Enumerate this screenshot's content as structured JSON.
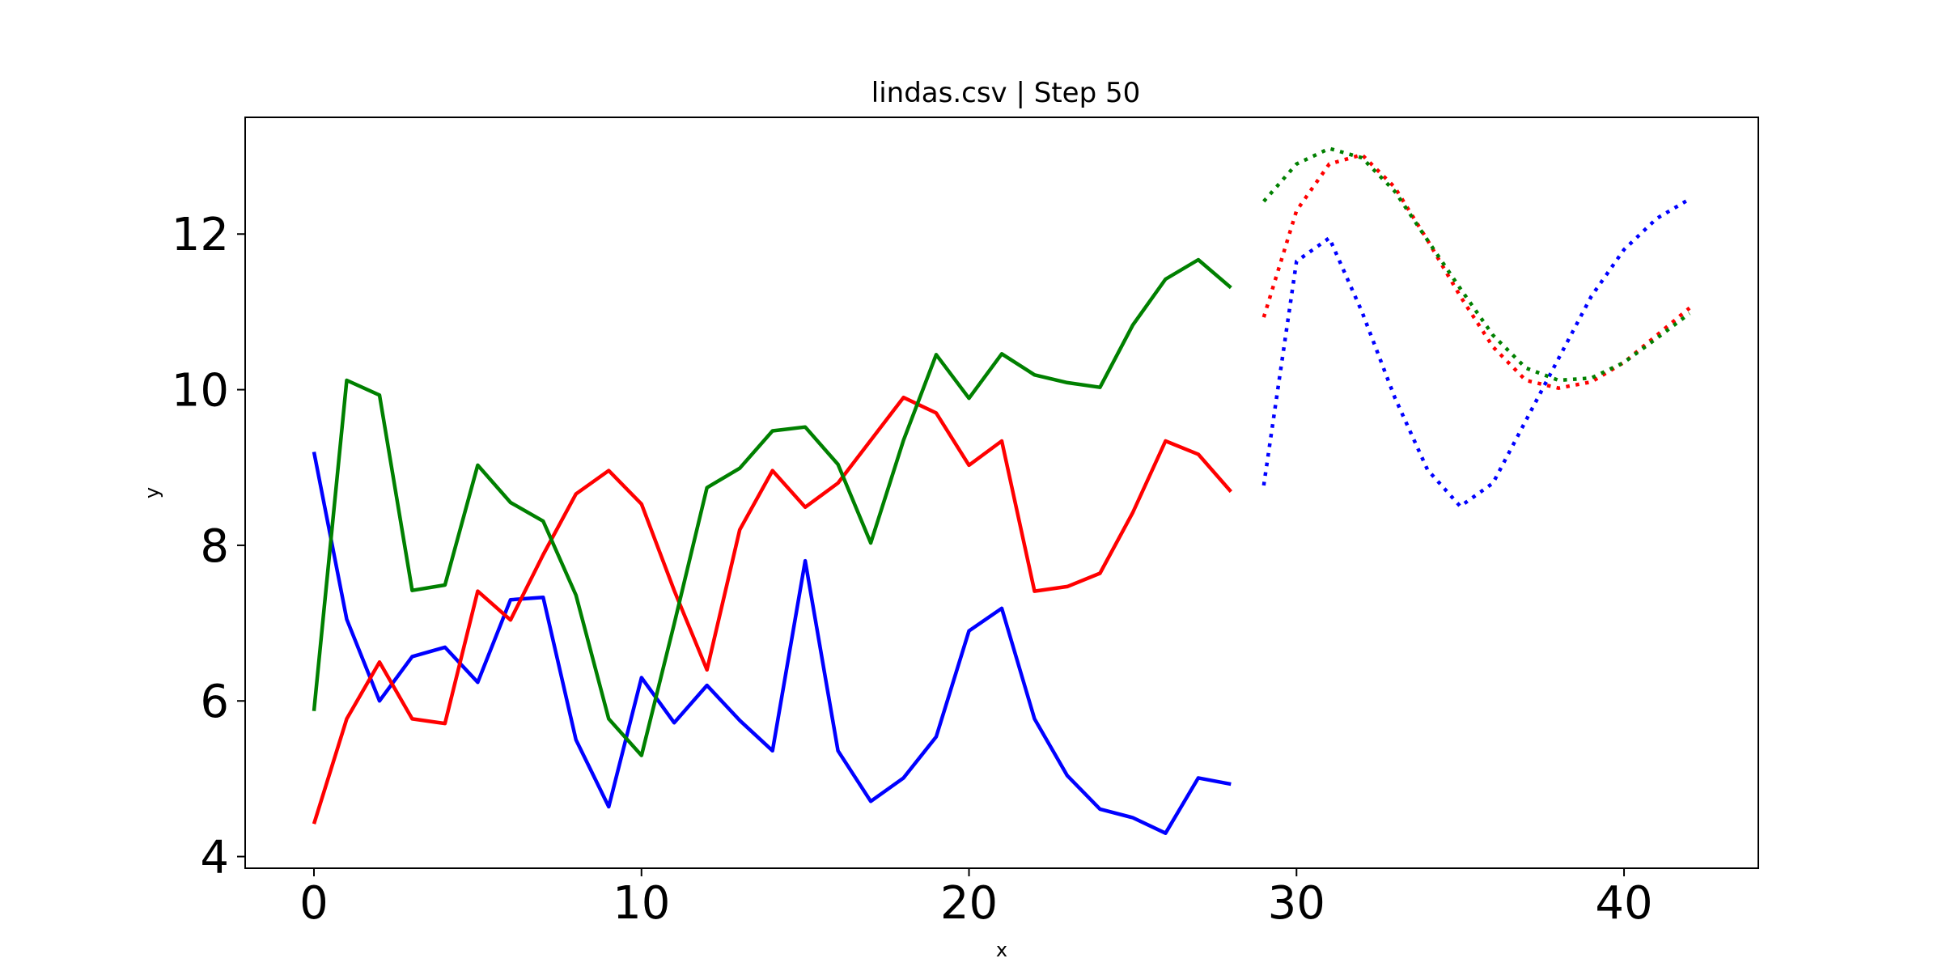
{
  "chart_data": {
    "type": "line",
    "title": "lindas.csv | Step 50",
    "xlabel": "x",
    "ylabel": "y",
    "xlim": [
      -2.1,
      44.1
    ],
    "ylim": [
      3.85,
      13.5
    ],
    "xticks": [
      0,
      10,
      20,
      30,
      40
    ],
    "yticks": [
      4,
      6,
      8,
      10,
      12
    ],
    "grid": false,
    "legend": "none",
    "series": [
      {
        "color": "#0000ff",
        "style": "solid",
        "x": [
          0,
          1,
          2,
          3,
          4,
          5,
          6,
          7,
          8,
          9,
          10,
          11,
          12,
          13,
          14,
          15,
          16,
          17,
          18,
          19,
          20,
          21,
          22,
          23,
          24,
          25,
          26,
          27,
          28
        ],
        "values": [
          9.2,
          7.05,
          6.0,
          6.57,
          6.69,
          6.24,
          7.3,
          7.33,
          5.5,
          4.64,
          6.3,
          5.72,
          6.2,
          5.75,
          5.36,
          7.8,
          5.36,
          4.71,
          5.01,
          5.54,
          6.9,
          7.19,
          5.77,
          5.04,
          4.61,
          4.5,
          4.3,
          5.01,
          4.93
        ]
      },
      {
        "color": "#ff0000",
        "style": "solid",
        "x": [
          0,
          1,
          2,
          3,
          4,
          5,
          6,
          7,
          8,
          9,
          10,
          11,
          12,
          13,
          14,
          15,
          16,
          17,
          18,
          19,
          20,
          21,
          22,
          23,
          24,
          25,
          26,
          27,
          28
        ],
        "values": [
          4.42,
          5.77,
          6.5,
          5.77,
          5.71,
          7.41,
          7.04,
          7.88,
          8.66,
          8.96,
          8.53,
          7.42,
          6.4,
          8.2,
          8.96,
          8.49,
          8.8,
          9.35,
          9.9,
          9.7,
          9.03,
          9.34,
          7.41,
          7.47,
          7.64,
          8.42,
          9.34,
          9.17,
          8.69
        ]
      },
      {
        "color": "#008000",
        "style": "solid",
        "x": [
          0,
          1,
          2,
          3,
          4,
          5,
          6,
          7,
          8,
          9,
          10,
          11,
          12,
          13,
          14,
          15,
          16,
          17,
          18,
          19,
          20,
          21,
          22,
          23,
          24,
          25,
          26,
          27,
          28
        ],
        "values": [
          5.87,
          10.12,
          9.93,
          7.42,
          7.49,
          9.03,
          8.55,
          8.31,
          7.36,
          5.77,
          5.3,
          6.99,
          8.74,
          8.99,
          9.47,
          9.52,
          9.04,
          8.03,
          9.35,
          10.45,
          9.89,
          10.46,
          10.19,
          10.09,
          10.03,
          10.83,
          11.42,
          11.67,
          11.31
        ]
      },
      {
        "color": "#0000ff",
        "style": "dotted",
        "x": [
          29,
          30,
          31,
          32,
          33,
          34,
          35,
          36,
          37,
          38,
          39,
          40,
          41,
          42
        ],
        "values": [
          8.77,
          11.65,
          11.95,
          11.0,
          9.9,
          8.97,
          8.5,
          8.8,
          9.6,
          10.4,
          11.2,
          11.8,
          12.2,
          12.45
        ]
      },
      {
        "color": "#ff0000",
        "style": "dotted",
        "x": [
          29,
          30,
          31,
          32,
          33,
          34,
          35,
          36,
          37,
          38,
          39,
          40,
          41,
          42
        ],
        "values": [
          10.93,
          12.3,
          12.9,
          13.02,
          12.6,
          11.92,
          11.2,
          10.55,
          10.12,
          10.02,
          10.1,
          10.35,
          10.7,
          11.05
        ]
      },
      {
        "color": "#008000",
        "style": "dotted",
        "x": [
          29,
          30,
          31,
          32,
          33,
          34,
          35,
          36,
          37,
          38,
          39,
          40,
          41,
          42
        ],
        "values": [
          12.42,
          12.9,
          13.1,
          12.98,
          12.55,
          11.92,
          11.3,
          10.7,
          10.28,
          10.12,
          10.15,
          10.35,
          10.66,
          10.98
        ]
      }
    ]
  }
}
